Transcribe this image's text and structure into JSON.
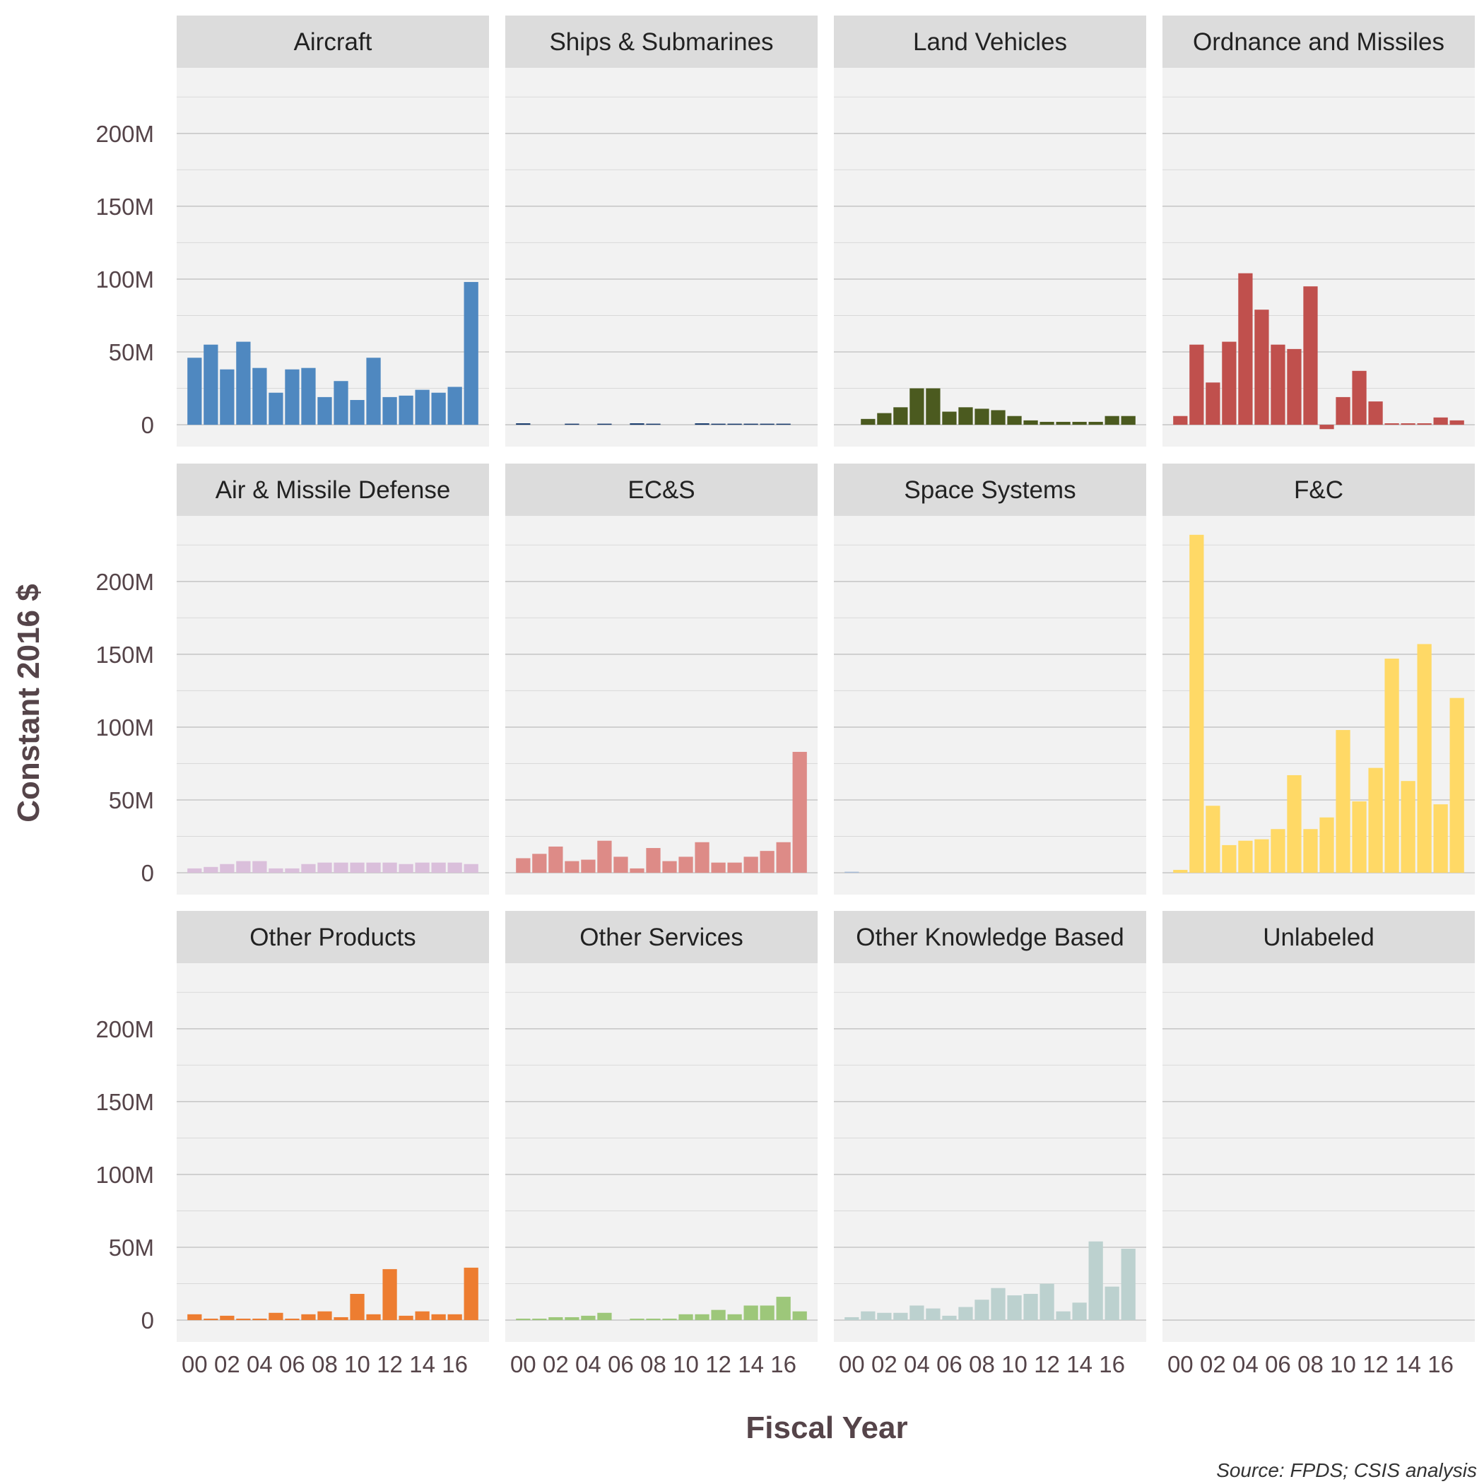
{
  "chart_data": {
    "type": "bar",
    "ylabel": "Constant 2016 $",
    "xlabel": "Fiscal Year",
    "caption": "Source: FPDS; CSIS analysis",
    "ylim": [
      -15,
      245
    ],
    "y_ticks": [
      0,
      50,
      100,
      150,
      200
    ],
    "y_tick_labels": [
      "0",
      "50M",
      "100M",
      "150M",
      "200M"
    ],
    "x": [
      "2000",
      "2001",
      "2002",
      "2003",
      "2004",
      "2005",
      "2006",
      "2007",
      "2008",
      "2009",
      "2010",
      "2011",
      "2012",
      "2013",
      "2014",
      "2015",
      "2016",
      "2017"
    ],
    "x_tick_labels": [
      "00",
      "02",
      "04",
      "06",
      "08",
      "10",
      "12",
      "14",
      "16"
    ],
    "x_tick_indices": [
      0,
      2,
      4,
      6,
      8,
      10,
      12,
      14,
      16
    ],
    "units": "millions of constant 2016 $",
    "grid": true,
    "panels": [
      {
        "name": "Aircraft",
        "color": "#4f88c0",
        "values": [
          46,
          55,
          38,
          57,
          39,
          22,
          38,
          39,
          19,
          30,
          17,
          46,
          19,
          20,
          24,
          22,
          26,
          98
        ]
      },
      {
        "name": "Ships & Submarines",
        "color": "#1a3d6e",
        "values": [
          1,
          0,
          0,
          0.5,
          0,
          0.5,
          0,
          1,
          0.5,
          0,
          0,
          1,
          0.5,
          0.5,
          0.5,
          0.5,
          0.5,
          0
        ]
      },
      {
        "name": "Land Vehicles",
        "color": "#4b5a1f",
        "values": [
          0,
          4,
          8,
          12,
          25,
          25,
          9,
          12,
          11,
          10,
          6,
          3,
          2,
          2,
          2,
          2,
          6,
          6
        ]
      },
      {
        "name": "Ordnance and Missiles",
        "color": "#c0504d",
        "values": [
          6,
          55,
          29,
          57,
          104,
          79,
          55,
          52,
          95,
          -3,
          19,
          37,
          16,
          1,
          1,
          1,
          5,
          3
        ]
      },
      {
        "name": "Air & Missile Defense",
        "color": "#dabfdb",
        "values": [
          3,
          4,
          6,
          8,
          8,
          3,
          3,
          6,
          7,
          7,
          7,
          7,
          7,
          6,
          7,
          7,
          7,
          6
        ]
      },
      {
        "name": "EC&S",
        "color": "#dd8b87",
        "values": [
          10,
          13,
          18,
          8,
          9,
          22,
          11,
          3,
          17,
          8,
          11,
          21,
          7,
          7,
          11,
          15,
          21,
          83
        ]
      },
      {
        "name": "Space Systems",
        "color": "#a8bcd8",
        "values": [
          0.5,
          0,
          0,
          0,
          0,
          0,
          0,
          0,
          0,
          0,
          0,
          0,
          0,
          0,
          0,
          0,
          0,
          0
        ]
      },
      {
        "name": "F&C",
        "color": "#ffd966",
        "values": [
          2,
          232,
          46,
          19,
          22,
          23,
          30,
          67,
          30,
          38,
          98,
          49,
          72,
          147,
          63,
          157,
          47,
          120
        ]
      },
      {
        "name": "Other Products",
        "color": "#ed7d31",
        "values": [
          4,
          1,
          3,
          1,
          1,
          5,
          1,
          4,
          6,
          2,
          18,
          4,
          35,
          3,
          6,
          4,
          4,
          36
        ]
      },
      {
        "name": "Other Services",
        "color": "#9dc77a",
        "values": [
          1,
          1,
          2,
          2,
          3,
          5,
          0,
          1,
          1,
          1,
          4,
          4,
          7,
          4,
          10,
          10,
          16,
          6
        ]
      },
      {
        "name": "Other Knowledge Based",
        "color": "#bcd1cf",
        "values": [
          2,
          6,
          5,
          5,
          10,
          8,
          3,
          9,
          14,
          22,
          17,
          18,
          25,
          6,
          12,
          54,
          23,
          49
        ]
      },
      {
        "name": "Unlabeled",
        "color": "#999999",
        "values": [
          0,
          0,
          0,
          0,
          0,
          0,
          0,
          0,
          0,
          0,
          0,
          0,
          0,
          0,
          0,
          0,
          0,
          0
        ]
      }
    ]
  }
}
